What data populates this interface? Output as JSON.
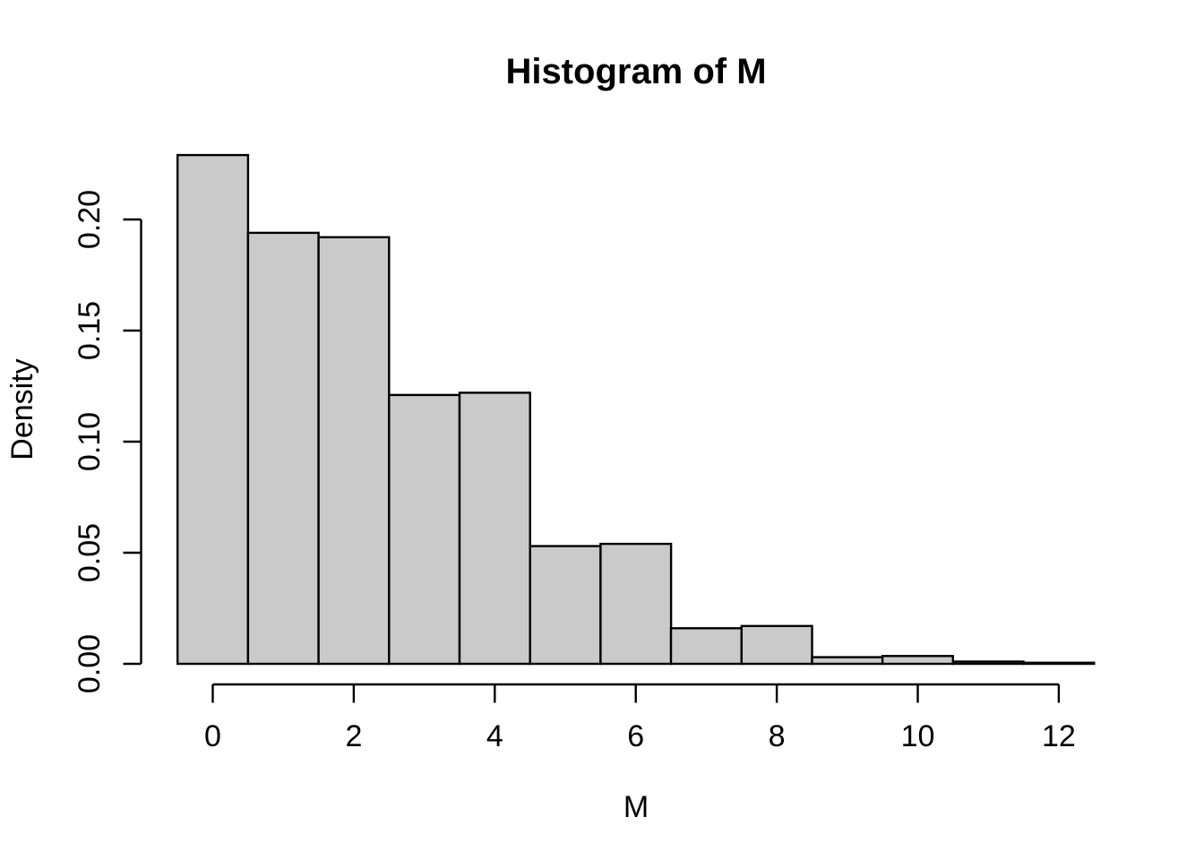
{
  "chart_data": {
    "type": "bar",
    "subtype": "histogram",
    "title": "Histogram of M",
    "xlabel": "M",
    "ylabel": "Density",
    "bin_breaks": [
      -0.5,
      0.5,
      1.5,
      2.5,
      3.5,
      4.5,
      5.5,
      6.5,
      7.5,
      8.5,
      9.5,
      10.5,
      11.5,
      12.5
    ],
    "densities": [
      0.229,
      0.194,
      0.192,
      0.121,
      0.122,
      0.053,
      0.054,
      0.016,
      0.017,
      0.003,
      0.0035,
      0.001,
      0.0005
    ],
    "x_ticks": [
      0,
      2,
      4,
      6,
      8,
      10,
      12
    ],
    "x_tick_labels": [
      "0",
      "2",
      "4",
      "6",
      "8",
      "10",
      "12"
    ],
    "y_ticks": [
      0,
      0.05,
      0.1,
      0.15,
      0.2
    ],
    "y_tick_labels": [
      "0.00",
      "0.05",
      "0.10",
      "0.15",
      "0.20"
    ],
    "xlim": [
      -0.5,
      12.5
    ],
    "ylim": [
      0,
      0.2
    ],
    "grid": false,
    "legend": null,
    "colors": {
      "bar_fill": "#cacaca",
      "bar_stroke": "#000000",
      "axis": "#000000",
      "text": "#000000",
      "background": "#ffffff"
    }
  }
}
